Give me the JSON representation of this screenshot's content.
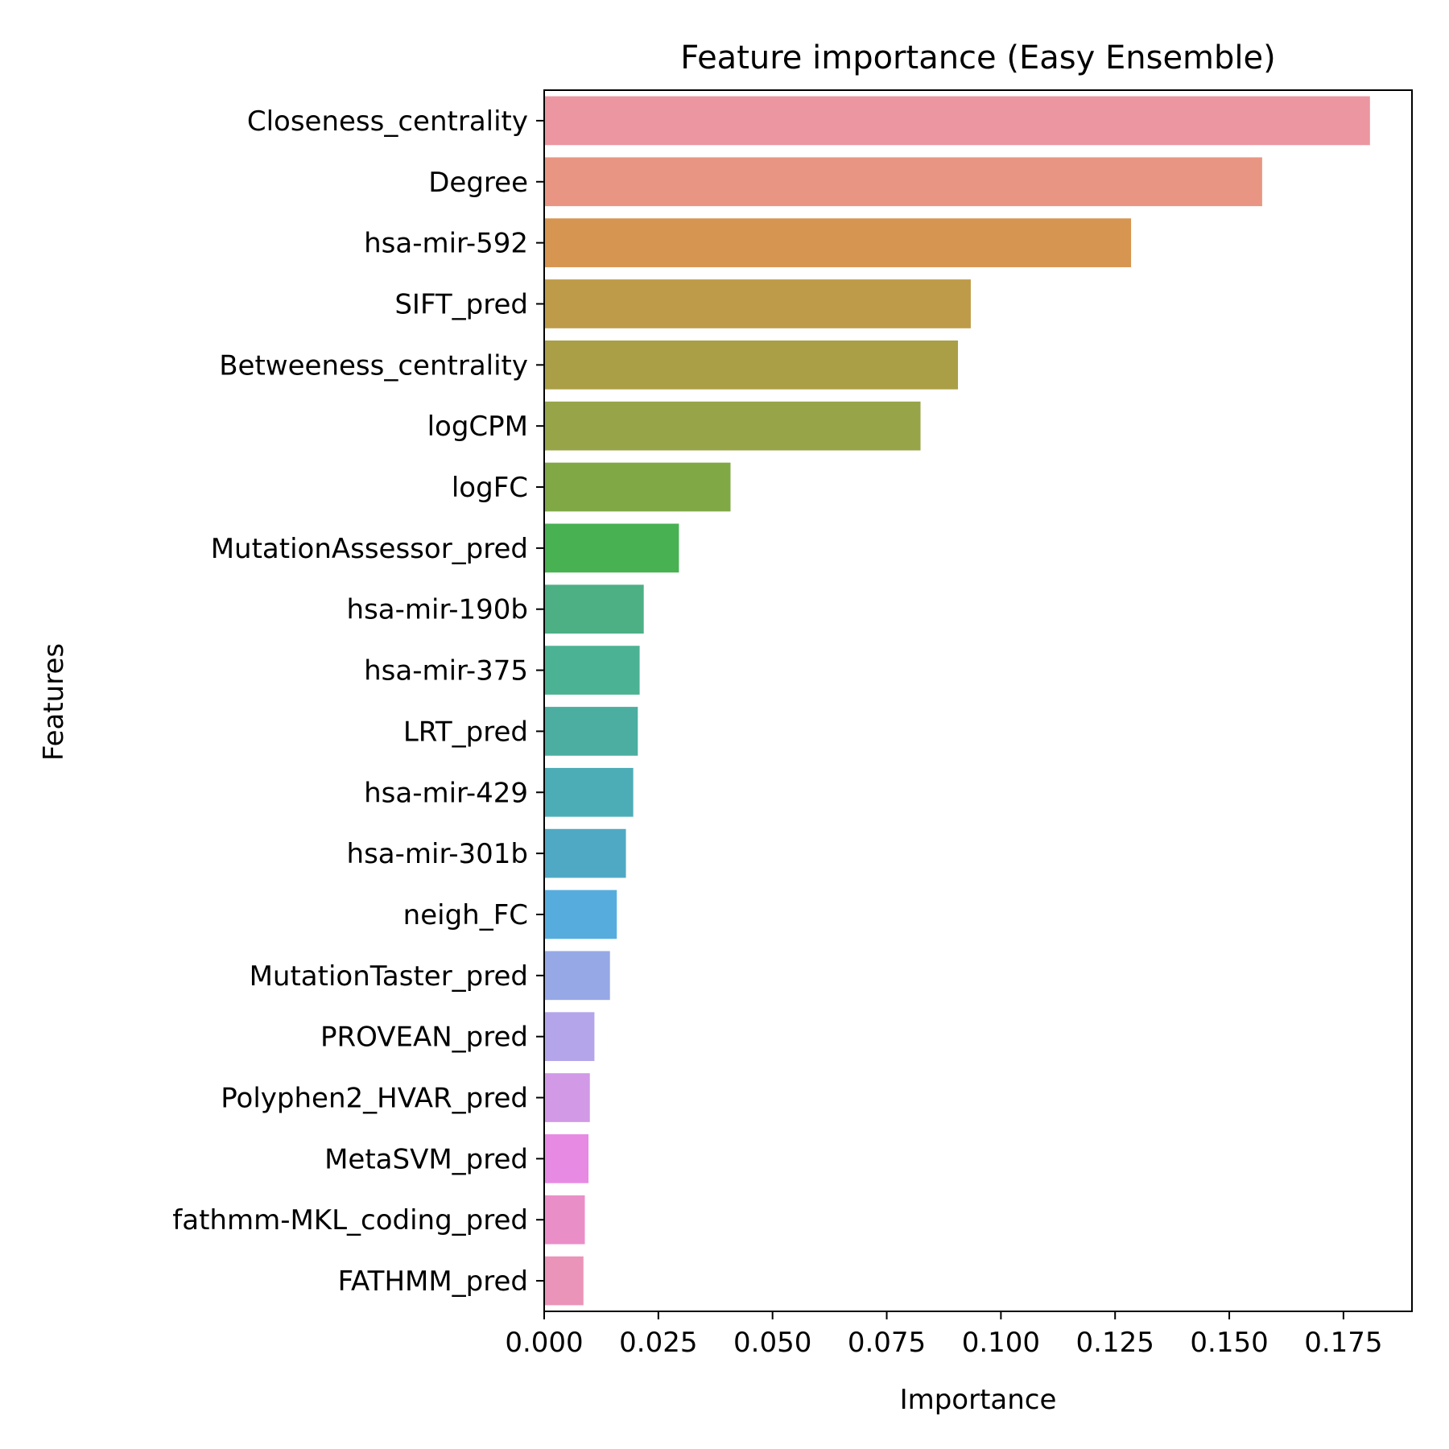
{
  "chart_data": {
    "type": "bar",
    "orientation": "horizontal",
    "title": "Feature importance (Easy Ensemble)",
    "xlabel": "Importance",
    "ylabel": "Features",
    "xlim": [
      0,
      0.19
    ],
    "xticks": [
      0.0,
      0.025,
      0.05,
      0.075,
      0.1,
      0.125,
      0.15,
      0.175
    ],
    "xtick_labels": [
      "0.000",
      "0.025",
      "0.050",
      "0.075",
      "0.100",
      "0.125",
      "0.150",
      "0.175"
    ],
    "grid": false,
    "legend": "none",
    "categories": [
      "Closeness_centrality",
      "Degree",
      "hsa-mir-592",
      "SIFT_pred",
      "Betweeness_centrality",
      "logCPM",
      "logFC",
      "MutationAssessor_pred",
      "hsa-mir-190b",
      "hsa-mir-375",
      "LRT_pred",
      "hsa-mir-429",
      "hsa-mir-301b",
      "neigh_FC",
      "MutationTaster_pred",
      "PROVEAN_pred",
      "Polyphen2_HVAR_pred",
      "MetaSVM_pred",
      "fathmm-MKL_coding_pred",
      "FATHMM_pred"
    ],
    "values": [
      0.1808,
      0.1572,
      0.1285,
      0.0934,
      0.0906,
      0.0824,
      0.0408,
      0.0295,
      0.0218,
      0.0209,
      0.0205,
      0.0195,
      0.0179,
      0.0159,
      0.0144,
      0.011,
      0.01,
      0.0097,
      0.0089,
      0.0086
    ],
    "colors": [
      "#eb96a0",
      "#e89683",
      "#d69550",
      "#be9b48",
      "#aa9f46",
      "#98a448",
      "#80a946",
      "#48b152",
      "#4cb084",
      "#4cb294",
      "#4baea0",
      "#4dadb6",
      "#50a9c4",
      "#56addd",
      "#96a8e6",
      "#b4a5ea",
      "#d199e6",
      "#e78ae4",
      "#ea8ec8",
      "#ea94ba"
    ]
  }
}
